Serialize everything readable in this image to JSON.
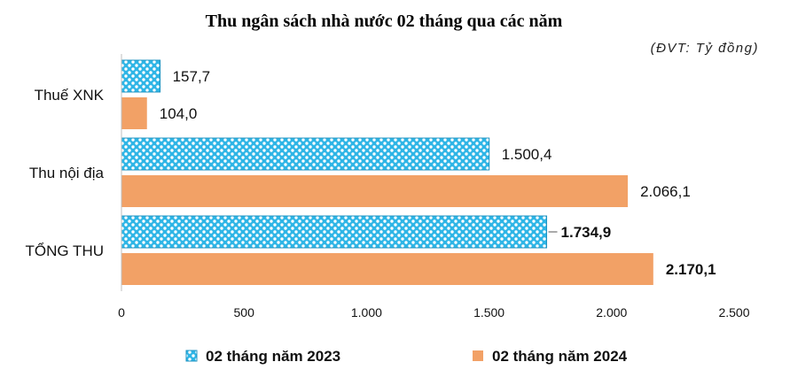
{
  "chart_data": {
    "type": "bar",
    "orientation": "horizontal",
    "title": "Thu ngân sách nhà nước 02 tháng qua các năm",
    "unit_label": "(ĐVT: Tỷ đồng)",
    "categories": [
      "Thuế XNK",
      "Thu nội địa",
      "TỔNG THU"
    ],
    "series": [
      {
        "name": "02 tháng năm 2023",
        "values": [
          157.7,
          1500.4,
          1734.9
        ],
        "value_labels": [
          "157,7",
          "1.500,4",
          "1.734,9"
        ],
        "color": "#2eb5e6",
        "pattern": "dotted-crosshatch"
      },
      {
        "name": "02 tháng năm 2024",
        "values": [
          104.0,
          2066.1,
          2170.1
        ],
        "value_labels": [
          "104,0",
          "2.066,1",
          "2.170,1"
        ],
        "color": "#f2a166"
      }
    ],
    "bold_labels_category": "TỔNG THU",
    "xlim": [
      0,
      2500
    ],
    "x_ticks": [
      0,
      500,
      1000,
      1500,
      2000,
      2500
    ],
    "x_tick_labels": [
      "0",
      "500",
      "1.000",
      "1.500",
      "2.000",
      "2.500"
    ],
    "grid": false,
    "legend_position": "bottom"
  }
}
